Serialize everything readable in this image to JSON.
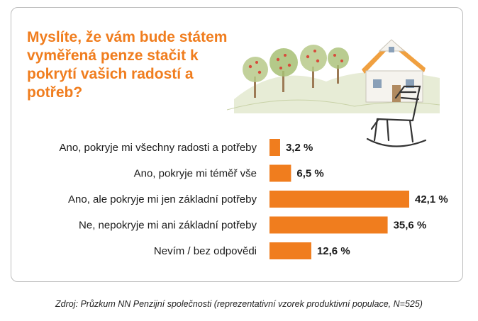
{
  "chart_data": {
    "type": "bar",
    "orientation": "horizontal",
    "title": "Myslíte, že vám bude státem vyměřená penze stačit k pokrytí vašich radostí a potřeb?",
    "categories": [
      "Ano, pokryje mi všechny radosti a potřeby",
      "Ano, pokryje mi téměř vše",
      "Ano, ale pokryje mi jen základní potřeby",
      "Ne, nepokryje mi ani základní potřeby",
      "Nevím / bez odpovědi"
    ],
    "values": [
      3.2,
      6.5,
      42.1,
      35.6,
      12.6
    ],
    "value_labels": [
      "3,2 %",
      "6,5 %",
      "42,1 %",
      "35,6 %",
      "12,6 %"
    ],
    "xlim": [
      0,
      42.1
    ],
    "bar_color": "#f07d1e",
    "grid": false,
    "legend": "none"
  },
  "source": "Zdroj: Průzkum NN Penzijní společnosti (reprezentativní vzorek produktivní populace, N=525)",
  "colors": {
    "accent": "#f07d1e",
    "text": "#1a1a1a",
    "border": "#bcbcbc"
  }
}
